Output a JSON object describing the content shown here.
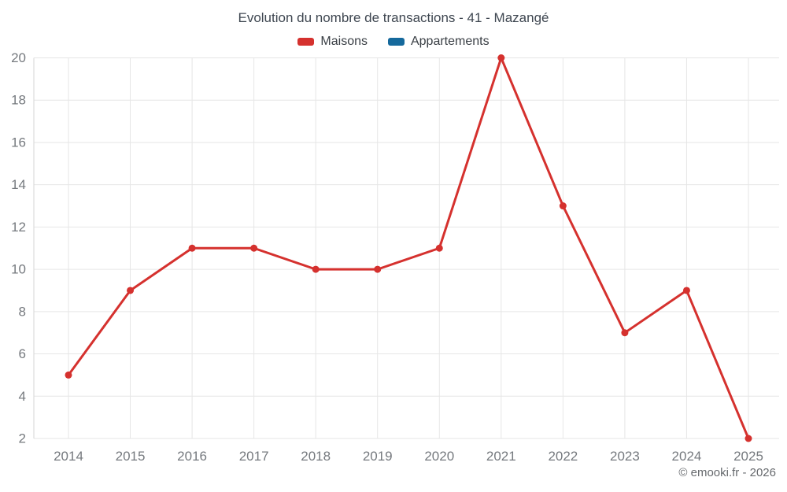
{
  "header": {
    "title": "Evolution du nombre de transactions - 41 - Mazangé"
  },
  "legend": [
    {
      "label": "Maisons",
      "color": "#d5312e"
    },
    {
      "label": "Appartements",
      "color": "#15699c"
    }
  ],
  "footer": {
    "credit": "© emooki.fr - 2026"
  },
  "chart_data": {
    "type": "line",
    "title": "Evolution du nombre de transactions - 41 - Mazangé",
    "categories": [
      "2014",
      "2015",
      "2016",
      "2017",
      "2018",
      "2019",
      "2020",
      "2021",
      "2022",
      "2023",
      "2024",
      "2025"
    ],
    "series": [
      {
        "name": "Maisons",
        "color": "#d5312e",
        "values": [
          5,
          9,
          11,
          11,
          10,
          10,
          11,
          20,
          13,
          7,
          9,
          2
        ]
      },
      {
        "name": "Appartements",
        "color": "#15699c",
        "values": []
      }
    ],
    "xlabel": "",
    "ylabel": "",
    "ylim": [
      2,
      20
    ],
    "ytick_step": 2,
    "grid": true,
    "legend_position": "top",
    "marker": "circle",
    "grid_color": "#e6e6e6",
    "axis_line_color": "#d6d6d6",
    "tick_label_color": "#75797e"
  }
}
